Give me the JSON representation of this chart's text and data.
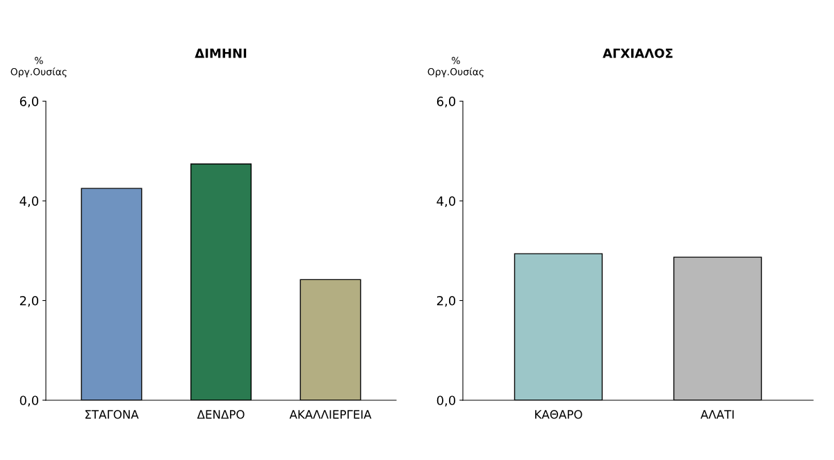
{
  "chart_data": [
    {
      "type": "bar",
      "title": "ΔΙΜΗΝΙ",
      "ylabel": "%\nΟργ.Ουσίας",
      "categories": [
        "ΣΤΑΓΟΝΑ",
        "ΔΕΝΔΡΟ",
        "ΑΚΑΛΛΙΕΡΓΕΙΑ"
      ],
      "values": [
        4.25,
        4.74,
        2.42
      ],
      "colors": [
        "#6f93c0",
        "#2a7a50",
        "#b3ae82"
      ],
      "ylim": [
        0,
        6
      ],
      "yticks": [
        {
          "value": 0,
          "label": "0,0"
        },
        {
          "value": 2,
          "label": "2,0"
        },
        {
          "value": 4,
          "label": "4,0"
        },
        {
          "value": 6,
          "label": "6,0"
        }
      ],
      "grid": false,
      "legend": false
    },
    {
      "type": "bar",
      "title": "ΑΓΧΙΑΛΟΣ",
      "ylabel": "%\nΟργ.Ουσίας",
      "categories": [
        "ΚΑΘΑΡΟ",
        "ΑΛΑΤΙ"
      ],
      "values": [
        2.94,
        2.87
      ],
      "colors": [
        "#9cc6c8",
        "#b8b8b8"
      ],
      "ylim": [
        0,
        6
      ],
      "yticks": [
        {
          "value": 0,
          "label": "0,0"
        },
        {
          "value": 2,
          "label": "2,0"
        },
        {
          "value": 4,
          "label": "4,0"
        },
        {
          "value": 6,
          "label": "6,0"
        }
      ],
      "grid": false,
      "legend": false
    }
  ]
}
